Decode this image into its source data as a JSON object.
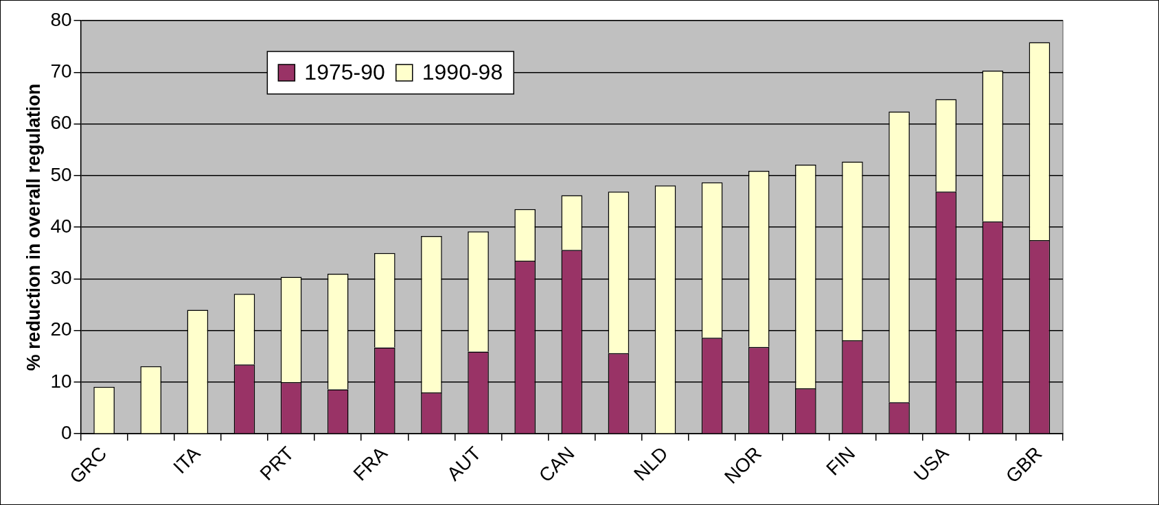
{
  "chart_data": {
    "type": "bar",
    "stacked": true,
    "ylabel": "% reduction in overall regulation",
    "categories": [
      "GRC",
      null,
      "ITA",
      null,
      "PRT",
      null,
      "FRA",
      null,
      "AUT",
      null,
      "CAN",
      null,
      "NLD",
      null,
      "NOR",
      null,
      "FIN",
      null,
      "USA",
      null,
      "GBR"
    ],
    "series": [
      {
        "name": "1975-90",
        "color": "#993366",
        "values": [
          0,
          0,
          0,
          13.4,
          10.0,
          8.6,
          16.7,
          8.0,
          15.9,
          33.5,
          35.6,
          15.6,
          0,
          18.6,
          16.8,
          8.8,
          18.1,
          6.1,
          46.9,
          41.1,
          37.5
        ]
      },
      {
        "name": "1990-98",
        "color": "#ffffcc",
        "values": [
          9.1,
          13.1,
          24.0,
          13.7,
          20.4,
          22.4,
          18.3,
          30.3,
          23.3,
          10.0,
          10.6,
          31.3,
          48.1,
          30.1,
          34.1,
          43.3,
          34.6,
          56.3,
          17.9,
          29.2,
          38.3
        ]
      }
    ],
    "ylim": [
      0,
      80
    ],
    "yticks": [
      0,
      10,
      20,
      30,
      40,
      50,
      60,
      70,
      80
    ],
    "grid": "y",
    "legend": "top"
  }
}
